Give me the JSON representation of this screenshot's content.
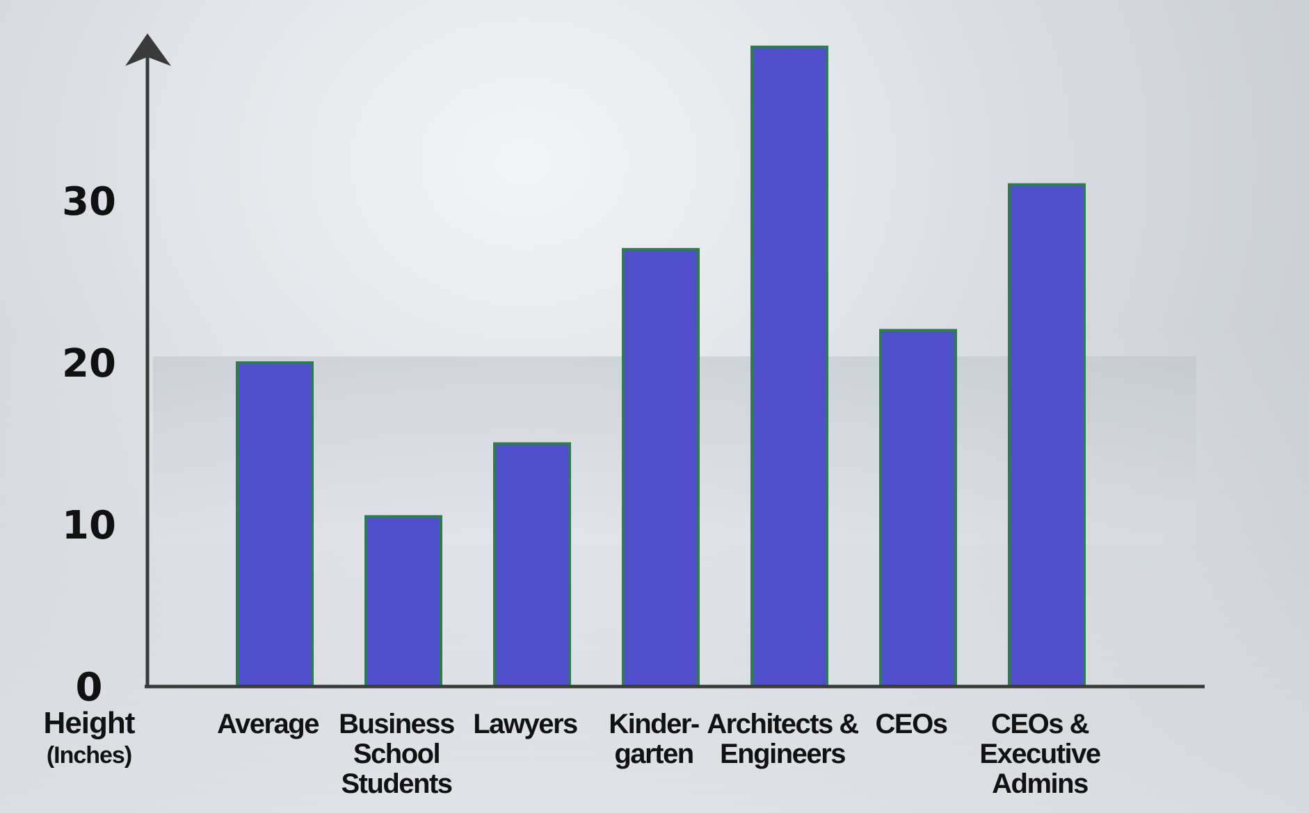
{
  "chart_data": {
    "type": "bar",
    "categories": [
      [
        "Average"
      ],
      [
        "Business",
        "School",
        "Students"
      ],
      [
        "Lawyers"
      ],
      [
        "Kinder-",
        "garten"
      ],
      [
        "Architects &",
        "Engineers"
      ],
      [
        "CEOs"
      ],
      [
        "CEOs &",
        "Executive",
        "Admins"
      ]
    ],
    "values": [
      20,
      10.5,
      15,
      27,
      39.5,
      22,
      31
    ],
    "ylim": [
      0,
      39.5
    ],
    "yticks": [
      0,
      10,
      20,
      30
    ],
    "ylabel": "Height",
    "ylabel_unit": "(Inches)",
    "title": "",
    "xlabel": "",
    "bar_color": "#4f4fcb",
    "bar_edge_color": "#2f7d4f",
    "axis_color": "#3a3a3a",
    "grid": false,
    "legend": "none"
  }
}
